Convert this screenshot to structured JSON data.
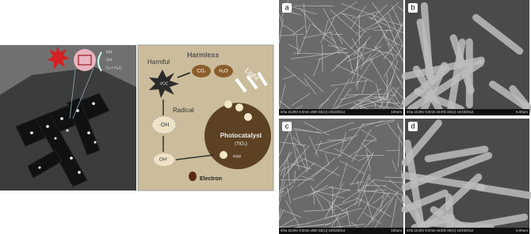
{
  "schematic": {
    "labels": [
      "NH",
      "VH",
      "O₂+ H₂O"
    ]
  },
  "mechanism": {
    "harmful": "Harmful",
    "harmless": "Harmless",
    "light": "Light",
    "pollutant": "VOC",
    "co2": "CO₂",
    "h2o": "H₂O",
    "radical": "Radical",
    "oh_radical": "·OH",
    "hydroxide": "OH⁻",
    "photocatalyst": "Photocatalyst",
    "catalyst_formula": "(TiO₂)",
    "hole": "Hole",
    "electron": "Electron"
  },
  "sem_panels": [
    {
      "label": "a",
      "info": "Inha 15.0kV 8.0mm x500 SE(U) 10/23/2014",
      "scale": "100um"
    },
    {
      "label": "b",
      "info": "Inha 15.0kV 8.0mm x8.00k SE(U) 10/23/2014",
      "scale": "5.00um"
    },
    {
      "label": "c",
      "info": "Inha 15.0kV 8.0mm x500 SE(U) 10/23/2014",
      "scale": "100um"
    },
    {
      "label": "d",
      "info": "Inha 15.0kV 8.0mm x8.00k SE(U) 10/23/2014",
      "scale": "5.00um"
    }
  ]
}
